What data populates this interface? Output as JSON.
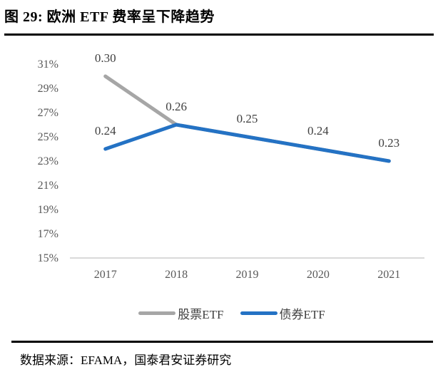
{
  "header": {
    "title": "图 29: 欧洲 ETF 费率呈下降趋势"
  },
  "footer": {
    "source": "数据来源：EFAMA，国泰君安证券研究"
  },
  "colors": {
    "stock_etf_gray": "#A6A6A6",
    "bond_etf_blue": "#2472C4",
    "axis_line": "#D9D9D9",
    "tick_text": "#595959",
    "data_label_text": "#404040",
    "divider_rule": "#000000"
  },
  "chart_data": {
    "type": "line",
    "title": "图 29: 欧洲 ETF 费率呈下降趋势",
    "categories": [
      "2017",
      "2018",
      "2019",
      "2020",
      "2021"
    ],
    "series": [
      {
        "name": "股票ETF",
        "color": "#A6A6A6",
        "values": [
          0.3,
          0.26,
          0.25,
          0.24,
          0.23
        ]
      },
      {
        "name": "债券ETF",
        "color": "#2472C4",
        "values": [
          0.24,
          0.26,
          0.25,
          0.24,
          0.23
        ]
      }
    ],
    "point_labels": [
      {
        "category": "2017",
        "value": 0.3
      },
      {
        "category": "2017",
        "value": 0.24
      },
      {
        "category": "2018",
        "value": 0.26
      },
      {
        "category": "2019",
        "value": 0.25
      },
      {
        "category": "2020",
        "value": 0.24
      },
      {
        "category": "2021",
        "value": 0.23
      }
    ],
    "xlabel": "",
    "ylabel": "",
    "ylim": [
      0.15,
      0.31
    ],
    "y_tick_step": 0.02,
    "y_tick_labels": [
      "31%",
      "29%",
      "27%",
      "25%",
      "23%",
      "21%",
      "19%",
      "17%",
      "15%"
    ],
    "x_tick_labels": [
      "2017",
      "2018",
      "2019",
      "2020",
      "2021"
    ],
    "grid": false,
    "legend_position": "bottom",
    "legend": [
      "股票ETF",
      "债券ETF"
    ]
  }
}
